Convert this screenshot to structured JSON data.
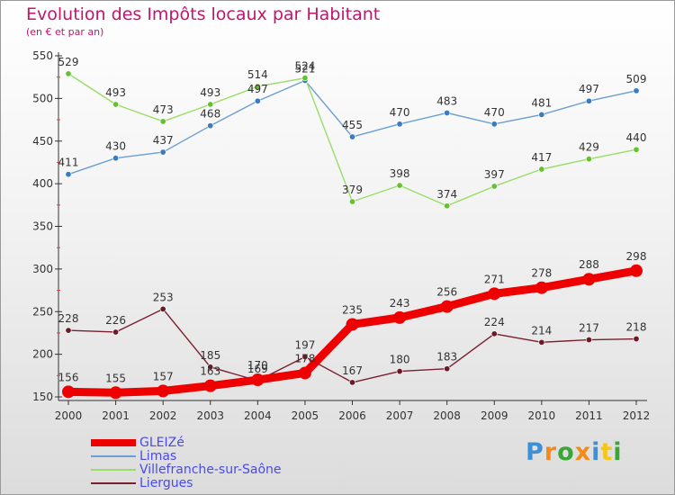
{
  "title": "Evolution des Impôts locaux par Habitant",
  "subtitle": "(en € et par an)",
  "brand": {
    "text": "Proxiti",
    "letter_colors": [
      "#3d8fd6",
      "#f28a1c",
      "#3aa635",
      "#f28a1c",
      "#3d8fd6",
      "#f5c518",
      "#3aa635"
    ]
  },
  "chart_data": {
    "type": "line",
    "x": [
      "2000",
      "2001",
      "2002",
      "2003",
      "2004",
      "2005",
      "2006",
      "2007",
      "2008",
      "2009",
      "2010",
      "2011",
      "2012"
    ],
    "xlabel": "",
    "ylabel": "",
    "ylim": [
      150,
      550
    ],
    "yticks": [
      "150",
      "200",
      "250",
      "300",
      "350",
      "400",
      "450",
      "500",
      "550"
    ],
    "grid": false,
    "legend_position": "bottom-left",
    "series": [
      {
        "name": "GLEIZé",
        "color": "#ee0000",
        "emphasis": true,
        "values": [
          156,
          155,
          157,
          163,
          170,
          178,
          235,
          243,
          256,
          271,
          278,
          288,
          298
        ],
        "labels": [
          "156",
          "155",
          "157",
          "163",
          "170",
          "178",
          "235",
          "243",
          "256",
          "271",
          "278",
          "288",
          "298"
        ]
      },
      {
        "name": "Limas",
        "color": "#6b9ed1",
        "marker_color": "#3a7cc0",
        "values": [
          411,
          430,
          437,
          468,
          497,
          521,
          455,
          470,
          483,
          470,
          481,
          497,
          509
        ],
        "labels": [
          "411",
          "430",
          "437",
          "468",
          "497",
          "521",
          "455",
          "470",
          "483",
          "470",
          "481",
          "497",
          "509"
        ]
      },
      {
        "name": "Villefranche-sur-Saône",
        "color": "#99dd66",
        "marker_color": "#66c12e",
        "values": [
          529,
          493,
          473,
          493,
          514,
          524,
          379,
          398,
          374,
          397,
          417,
          429,
          440
        ],
        "labels": [
          "529",
          "493",
          "473",
          "493",
          "514",
          "524",
          "379",
          "398",
          "374",
          "397",
          "417",
          "429",
          "440"
        ]
      },
      {
        "name": "Liergues",
        "color": "#7a1f30",
        "marker_color": "#6b1a28",
        "values": [
          228,
          226,
          253,
          185,
          169,
          197,
          167,
          180,
          183,
          224,
          214,
          217,
          218
        ],
        "labels": [
          "228",
          "226",
          "253",
          "185",
          "169",
          "197",
          "167",
          "180",
          "183",
          "224",
          "214",
          "217",
          "218"
        ]
      }
    ]
  }
}
